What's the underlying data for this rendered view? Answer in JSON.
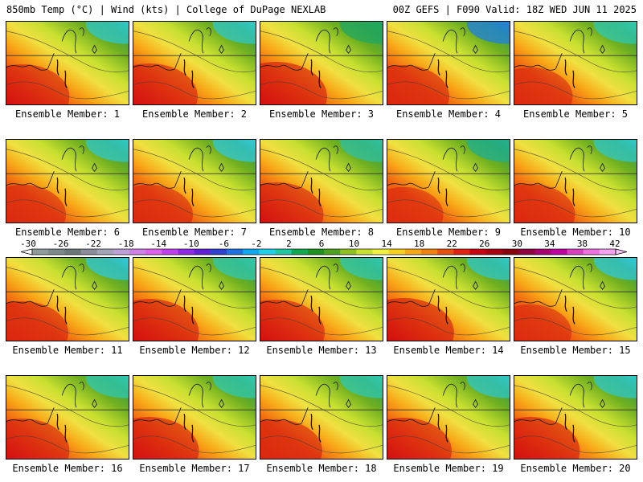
{
  "header": {
    "left": "850mb Temp (°C) | Wind (kts) | College of DuPage NEXLAB",
    "right": "00Z GEFS | F090 Valid: 18Z WED JUN 11 2025"
  },
  "member_label": "Ensemble Member:",
  "members": [
    1,
    2,
    3,
    4,
    5,
    6,
    7,
    8,
    9,
    10,
    11,
    12,
    13,
    14,
    15,
    16,
    17,
    18,
    19,
    20
  ],
  "colorbar": {
    "tick_labels": [
      "-30",
      "-26",
      "-22",
      "-18",
      "-14",
      "-10",
      "-6",
      "-2",
      "2",
      "6",
      "10",
      "14",
      "18",
      "22",
      "26",
      "30",
      "34",
      "38",
      "42"
    ],
    "tick_values": [
      -30,
      -26,
      -22,
      -18,
      -14,
      -10,
      -6,
      -2,
      2,
      6,
      10,
      14,
      18,
      22,
      26,
      30,
      34,
      38,
      42
    ],
    "colors": [
      "#909c9c",
      "#7e8a8a",
      "#6b7878",
      "#8c8c9c",
      "#a4a4b8",
      "#c0a0d8",
      "#d080e8",
      "#e060f0",
      "#c040f0",
      "#9028e8",
      "#6020d8",
      "#3040d0",
      "#2070e0",
      "#10a8f0",
      "#20d0e8",
      "#20c8a0",
      "#10a850",
      "#209020",
      "#50a020",
      "#90c020",
      "#c8e030",
      "#f0f040",
      "#f8d020",
      "#f8a818",
      "#f08010",
      "#e85010",
      "#e02010",
      "#c80010",
      "#a80010",
      "#880010",
      "#900040",
      "#a80070",
      "#c000a0",
      "#d840c0",
      "#f070e0",
      "#f8a0f0"
    ]
  },
  "maps": [
    {
      "member": 1,
      "warmth": 0.65,
      "cold_corner": "#30c8c8"
    },
    {
      "member": 2,
      "warmth": 0.7,
      "cold_corner": "#30c8c8"
    },
    {
      "member": 3,
      "warmth": 0.8,
      "cold_corner": "#20a860"
    },
    {
      "member": 4,
      "warmth": 0.6,
      "cold_corner": "#2080e0"
    },
    {
      "member": 5,
      "warmth": 0.45,
      "cold_corner": "#30c8b0"
    },
    {
      "member": 6,
      "warmth": 0.5,
      "cold_corner": "#30c8c8"
    },
    {
      "member": 7,
      "warmth": 0.5,
      "cold_corner": "#30c8d8"
    },
    {
      "member": 8,
      "warmth": 0.65,
      "cold_corner": "#30c0a0"
    },
    {
      "member": 9,
      "warmth": 0.35,
      "cold_corner": "#20b090"
    },
    {
      "member": 10,
      "warmth": 0.55,
      "cold_corner": "#30c8c8"
    },
    {
      "member": 11,
      "warmth": 0.6,
      "cold_corner": "#30c8d8"
    },
    {
      "member": 12,
      "warmth": 0.75,
      "cold_corner": "#30c8b0"
    },
    {
      "member": 13,
      "warmth": 0.7,
      "cold_corner": "#30c8b0"
    },
    {
      "member": 14,
      "warmth": 0.8,
      "cold_corner": "#30c8c8"
    },
    {
      "member": 15,
      "warmth": 0.4,
      "cold_corner": "#30c8d8"
    },
    {
      "member": 16,
      "warmth": 0.65,
      "cold_corner": "#30c8b0"
    },
    {
      "member": 17,
      "warmth": 0.75,
      "cold_corner": "#30c8b0"
    },
    {
      "member": 18,
      "warmth": 0.6,
      "cold_corner": "#30c8b0"
    },
    {
      "member": 19,
      "warmth": 0.7,
      "cold_corner": "#30c8c8"
    },
    {
      "member": 20,
      "warmth": 0.75,
      "cold_corner": "#30c8c8"
    }
  ]
}
